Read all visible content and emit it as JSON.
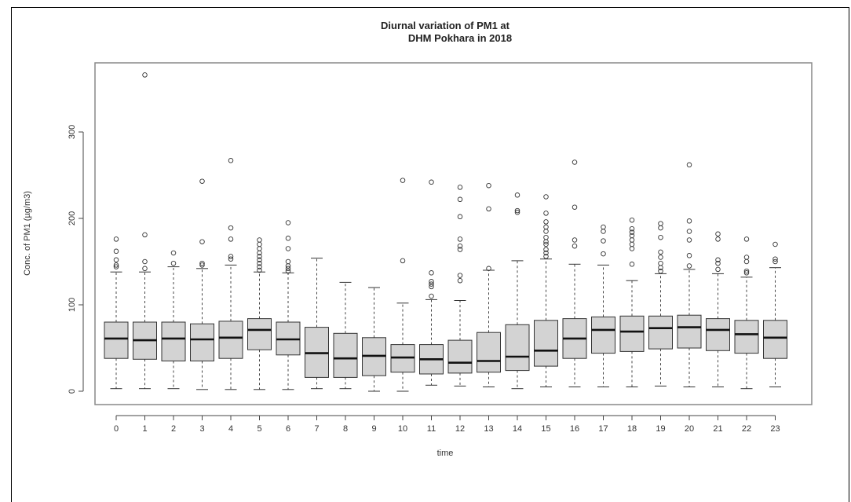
{
  "chart_data": {
    "type": "box",
    "title_line1": "Diurnal variation of PM1 at",
    "title_line2": "DHM Pokhara in 2018",
    "xlabel": "time",
    "ylabel": "Conc. of PM1 (µg/m3)",
    "ylim": [
      -10,
      375
    ],
    "y_ticks": [
      0,
      100,
      200,
      300
    ],
    "colors": {
      "box_fill": "#d3d3d3",
      "stroke": "#333333",
      "frame": "#888888"
    },
    "categories": [
      "0",
      "1",
      "2",
      "3",
      "4",
      "5",
      "6",
      "7",
      "8",
      "9",
      "10",
      "11",
      "12",
      "13",
      "14",
      "15",
      "16",
      "17",
      "18",
      "19",
      "20",
      "21",
      "22",
      "23"
    ],
    "boxes": [
      {
        "label": "0",
        "whisker_low": 3,
        "q1": 38,
        "median": 61,
        "q3": 80,
        "whisker_high": 138,
        "outliers": [
          144,
          146,
          152,
          162,
          176
        ]
      },
      {
        "label": "1",
        "whisker_low": 3,
        "q1": 37,
        "median": 59,
        "q3": 80,
        "whisker_high": 138,
        "outliers": [
          142,
          150,
          181,
          366
        ]
      },
      {
        "label": "2",
        "whisker_low": 3,
        "q1": 35,
        "median": 61,
        "q3": 80,
        "whisker_high": 144,
        "outliers": [
          148,
          160
        ]
      },
      {
        "label": "3",
        "whisker_low": 2,
        "q1": 35,
        "median": 60,
        "q3": 78,
        "whisker_high": 142,
        "outliers": [
          146,
          148,
          173,
          243
        ]
      },
      {
        "label": "4",
        "whisker_low": 2,
        "q1": 38,
        "median": 62,
        "q3": 81,
        "whisker_high": 146,
        "outliers": [
          153,
          156,
          176,
          189,
          267
        ]
      },
      {
        "label": "5",
        "whisker_low": 2,
        "q1": 48,
        "median": 71,
        "q3": 84,
        "whisker_high": 138,
        "outliers": [
          140,
          144,
          148,
          152,
          156,
          160,
          165,
          170,
          175
        ]
      },
      {
        "label": "6",
        "whisker_low": 2,
        "q1": 42,
        "median": 60,
        "q3": 80,
        "whisker_high": 137,
        "outliers": [
          139,
          142,
          145,
          150,
          165,
          177,
          195
        ]
      },
      {
        "label": "7",
        "whisker_low": 3,
        "q1": 16,
        "median": 44,
        "q3": 74,
        "whisker_high": 154,
        "outliers": []
      },
      {
        "label": "8",
        "whisker_low": 3,
        "q1": 16,
        "median": 38,
        "q3": 67,
        "whisker_high": 126,
        "outliers": []
      },
      {
        "label": "9",
        "whisker_low": 0,
        "q1": 18,
        "median": 41,
        "q3": 62,
        "whisker_high": 120,
        "outliers": []
      },
      {
        "label": "10",
        "whisker_low": 0,
        "q1": 22,
        "median": 39,
        "q3": 54,
        "whisker_high": 102,
        "outliers": [
          151,
          244
        ]
      },
      {
        "label": "11",
        "whisker_low": 7,
        "q1": 20,
        "median": 37,
        "q3": 54,
        "whisker_high": 106,
        "outliers": [
          110,
          121,
          124,
          127,
          137,
          242
        ]
      },
      {
        "label": "12",
        "whisker_low": 6,
        "q1": 21,
        "median": 33,
        "q3": 59,
        "whisker_high": 105,
        "outliers": [
          128,
          134,
          164,
          168,
          176,
          202,
          222,
          236
        ]
      },
      {
        "label": "13",
        "whisker_low": 5,
        "q1": 22,
        "median": 35,
        "q3": 68,
        "whisker_high": 140,
        "outliers": [
          142,
          211,
          238
        ]
      },
      {
        "label": "14",
        "whisker_low": 3,
        "q1": 24,
        "median": 40,
        "q3": 77,
        "whisker_high": 151,
        "outliers": [
          207,
          209,
          227
        ]
      },
      {
        "label": "15",
        "whisker_low": 5,
        "q1": 29,
        "median": 47,
        "q3": 82,
        "whisker_high": 153,
        "outliers": [
          156,
          160,
          164,
          170,
          173,
          178,
          185,
          190,
          196,
          206,
          225
        ]
      },
      {
        "label": "16",
        "whisker_low": 5,
        "q1": 38,
        "median": 61,
        "q3": 84,
        "whisker_high": 147,
        "outliers": [
          168,
          175,
          213,
          265
        ]
      },
      {
        "label": "17",
        "whisker_low": 5,
        "q1": 44,
        "median": 71,
        "q3": 86,
        "whisker_high": 146,
        "outliers": [
          159,
          174,
          185,
          190
        ]
      },
      {
        "label": "18",
        "whisker_low": 5,
        "q1": 46,
        "median": 69,
        "q3": 87,
        "whisker_high": 128,
        "outliers": [
          147,
          165,
          170,
          175,
          180,
          184,
          188,
          198
        ]
      },
      {
        "label": "19",
        "whisker_low": 6,
        "q1": 49,
        "median": 73,
        "q3": 87,
        "whisker_high": 136,
        "outliers": [
          139,
          143,
          148,
          155,
          161,
          178,
          189,
          194
        ]
      },
      {
        "label": "20",
        "whisker_low": 5,
        "q1": 50,
        "median": 74,
        "q3": 88,
        "whisker_high": 141,
        "outliers": [
          145,
          157,
          175,
          185,
          197,
          262
        ]
      },
      {
        "label": "21",
        "whisker_low": 5,
        "q1": 47,
        "median": 71,
        "q3": 84,
        "whisker_high": 136,
        "outliers": [
          141,
          148,
          152,
          176,
          182
        ]
      },
      {
        "label": "22",
        "whisker_low": 3,
        "q1": 44,
        "median": 66,
        "q3": 82,
        "whisker_high": 132,
        "outliers": [
          137,
          139,
          150,
          155,
          176
        ]
      },
      {
        "label": "23",
        "whisker_low": 5,
        "q1": 38,
        "median": 62,
        "q3": 82,
        "whisker_high": 143,
        "outliers": [
          150,
          153,
          170
        ]
      }
    ]
  }
}
